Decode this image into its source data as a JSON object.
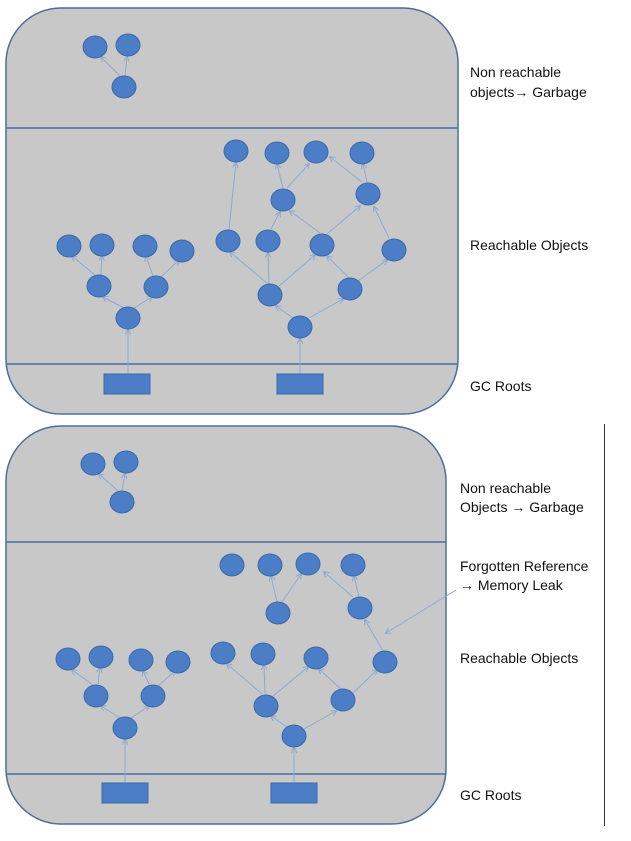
{
  "colors": {
    "panel_fill": "#c8c8c8",
    "panel_stroke": "#4a6e9f",
    "node_fill": "#4b7ec6",
    "node_stroke": "#3a6aa8",
    "edge": "#8aaad6",
    "text": "#111111"
  },
  "top": {
    "label_garbage_1": "Non reachable",
    "label_garbage_2": "objects→ Garbage",
    "label_reachable": "Reachable Objects",
    "label_roots": "GC Roots"
  },
  "bottom": {
    "label_garbage_1": "Non reachable",
    "label_garbage_2": "Objects → Garbage",
    "label_leak_1": "Forgotten Reference",
    "label_leak_2": "→ Memory Leak",
    "label_reachable": "Reachable Objects",
    "label_roots": "GC Roots"
  }
}
